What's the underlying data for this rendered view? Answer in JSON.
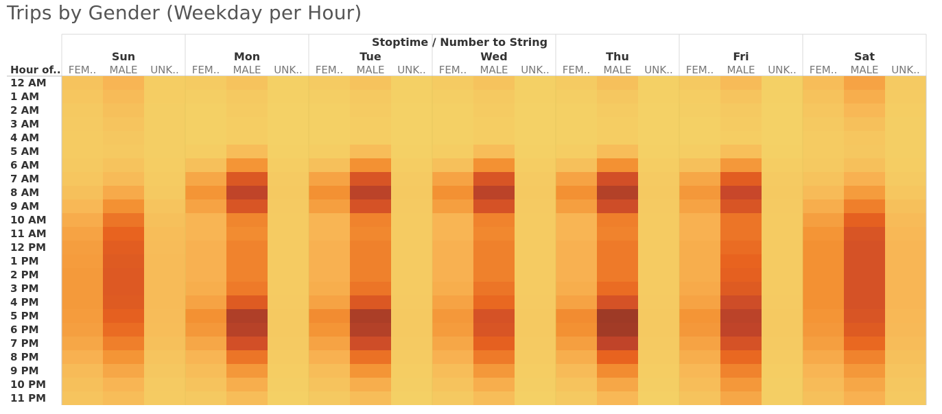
{
  "title": "Trips by Gender (Weekday per Hour)",
  "chart_data": {
    "type": "heatmap",
    "title": "Trips by Gender (Weekday per Hour)",
    "column_field_label": "Stoptime / Number to String",
    "row_field_label": "Hour of..",
    "days": [
      "Sun",
      "Mon",
      "Tue",
      "Wed",
      "Thu",
      "Fri",
      "Sat"
    ],
    "genders": [
      "FEMALE",
      "MALE",
      "UNKNOWN"
    ],
    "gender_display_labels": [
      "FEM..",
      "MALE",
      "UNK.."
    ],
    "hours": [
      "12 AM",
      "1 AM",
      "2 AM",
      "3 AM",
      "4 AM",
      "5 AM",
      "6 AM",
      "7 AM",
      "8 AM",
      "9 AM",
      "10 AM",
      "11 AM",
      "12 PM",
      "1 PM",
      "2 PM",
      "3 PM",
      "4 PM",
      "5 PM",
      "6 PM",
      "7 PM",
      "8 PM",
      "9 PM",
      "10 PM",
      "11 PM"
    ],
    "intensity_note": "relative trip counts (0-100 scale, estimated from color)",
    "color_scale": [
      "#f4d166",
      "#f8b554",
      "#f39133",
      "#e8631f",
      "#c8472a",
      "#9e3a26"
    ],
    "values": {
      "Sun": {
        "FEMALE": [
          10,
          8,
          6,
          5,
          4,
          4,
          6,
          8,
          12,
          18,
          25,
          30,
          33,
          34,
          35,
          35,
          35,
          34,
          32,
          28,
          22,
          16,
          12,
          9
        ],
        "MALE": [
          20,
          16,
          12,
          9,
          7,
          6,
          10,
          16,
          26,
          40,
          52,
          60,
          64,
          66,
          67,
          67,
          66,
          62,
          56,
          48,
          38,
          28,
          20,
          14
        ],
        "UNKNOWN": [
          3,
          3,
          2,
          2,
          2,
          2,
          3,
          4,
          6,
          9,
          12,
          14,
          15,
          16,
          16,
          16,
          16,
          15,
          14,
          12,
          9,
          7,
          5,
          4
        ]
      },
      "Mon": {
        "FEMALE": [
          4,
          2,
          1,
          1,
          1,
          3,
          12,
          28,
          38,
          30,
          20,
          20,
          22,
          22,
          22,
          24,
          30,
          40,
          36,
          28,
          20,
          14,
          10,
          6
        ],
        "MALE": [
          10,
          6,
          4,
          3,
          3,
          14,
          38,
          68,
          84,
          70,
          45,
          42,
          46,
          46,
          46,
          50,
          66,
          92,
          88,
          74,
          52,
          36,
          24,
          14
        ],
        "UNKNOWN": [
          1,
          1,
          0,
          0,
          0,
          1,
          3,
          5,
          6,
          5,
          4,
          4,
          4,
          4,
          4,
          4,
          5,
          6,
          6,
          5,
          4,
          3,
          2,
          1
        ]
      },
      "Tue": {
        "FEMALE": [
          4,
          2,
          1,
          1,
          1,
          3,
          12,
          30,
          40,
          32,
          20,
          20,
          22,
          22,
          22,
          24,
          30,
          42,
          38,
          30,
          22,
          14,
          10,
          6
        ],
        "MALE": [
          10,
          6,
          4,
          3,
          3,
          14,
          40,
          70,
          86,
          72,
          46,
          44,
          47,
          47,
          47,
          52,
          68,
          94,
          90,
          76,
          54,
          38,
          24,
          14
        ],
        "UNKNOWN": [
          1,
          1,
          0,
          0,
          0,
          1,
          3,
          5,
          6,
          5,
          4,
          4,
          4,
          4,
          4,
          4,
          5,
          6,
          6,
          5,
          4,
          3,
          2,
          1
        ]
      },
      "Wed": {
        "FEMALE": [
          4,
          2,
          1,
          1,
          1,
          3,
          12,
          30,
          40,
          32,
          20,
          20,
          22,
          22,
          22,
          24,
          30,
          36,
          34,
          28,
          22,
          14,
          10,
          6
        ],
        "MALE": [
          10,
          6,
          4,
          3,
          3,
          14,
          40,
          70,
          86,
          72,
          46,
          44,
          47,
          47,
          47,
          52,
          58,
          72,
          70,
          62,
          50,
          36,
          24,
          14
        ],
        "UNKNOWN": [
          1,
          1,
          0,
          0,
          0,
          1,
          3,
          5,
          6,
          5,
          4,
          4,
          4,
          4,
          4,
          4,
          5,
          6,
          6,
          5,
          4,
          3,
          2,
          1
        ]
      },
      "Thu": {
        "FEMALE": [
          4,
          2,
          1,
          1,
          1,
          3,
          12,
          30,
          40,
          32,
          20,
          20,
          22,
          22,
          22,
          24,
          30,
          42,
          40,
          32,
          24,
          16,
          10,
          6
        ],
        "MALE": [
          12,
          7,
          4,
          3,
          3,
          14,
          40,
          74,
          90,
          76,
          48,
          46,
          50,
          50,
          50,
          56,
          72,
          100,
          98,
          84,
          60,
          42,
          28,
          18
        ],
        "UNKNOWN": [
          1,
          1,
          0,
          0,
          0,
          1,
          3,
          5,
          6,
          5,
          4,
          4,
          4,
          4,
          4,
          4,
          5,
          6,
          6,
          5,
          4,
          3,
          2,
          1
        ]
      },
      "Fri": {
        "FEMALE": [
          6,
          3,
          2,
          1,
          1,
          3,
          12,
          28,
          36,
          30,
          22,
          22,
          24,
          24,
          24,
          26,
          30,
          38,
          36,
          30,
          24,
          18,
          14,
          10
        ],
        "MALE": [
          16,
          9,
          6,
          4,
          3,
          13,
          36,
          64,
          80,
          70,
          52,
          52,
          56,
          60,
          62,
          66,
          76,
          86,
          84,
          72,
          58,
          46,
          36,
          28
        ],
        "UNKNOWN": [
          1,
          1,
          0,
          0,
          0,
          1,
          3,
          5,
          6,
          5,
          4,
          4,
          4,
          4,
          4,
          4,
          5,
          6,
          6,
          5,
          4,
          3,
          2,
          2
        ]
      },
      "Sat": {
        "FEMALE": [
          14,
          11,
          8,
          6,
          4,
          4,
          6,
          10,
          16,
          24,
          32,
          38,
          40,
          40,
          40,
          40,
          40,
          38,
          36,
          32,
          26,
          20,
          16,
          12
        ],
        "MALE": [
          30,
          24,
          18,
          12,
          8,
          7,
          12,
          22,
          34,
          48,
          62,
          70,
          72,
          72,
          72,
          72,
          72,
          70,
          66,
          58,
          46,
          36,
          28,
          22
        ],
        "UNKNOWN": [
          5,
          4,
          3,
          2,
          2,
          2,
          3,
          5,
          8,
          12,
          16,
          18,
          19,
          19,
          19,
          19,
          19,
          18,
          17,
          15,
          12,
          9,
          7,
          6
        ]
      }
    }
  }
}
